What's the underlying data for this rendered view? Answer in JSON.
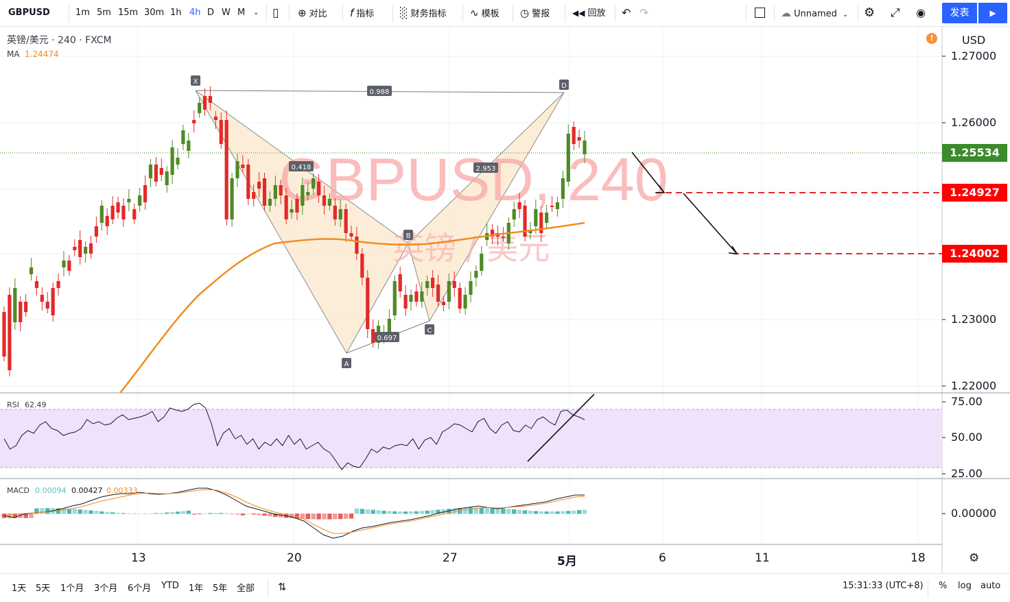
{
  "toolbar": {
    "symbol": "GBPUSD",
    "intervals": [
      "1m",
      "5m",
      "15m",
      "30m",
      "1h",
      "4h",
      "D",
      "W",
      "M"
    ],
    "active_interval": "4h",
    "compare": "对比",
    "indicators": "指标",
    "fin_indicators": "财务指标",
    "templates": "模板",
    "alert": "警报",
    "replay": "回放",
    "layout_name": "Unnamed",
    "publish": "发表"
  },
  "legend": {
    "title": "英镑/美元 · 240 · FXCM",
    "ma_label": "MA",
    "ma_value": "1.24474",
    "rsi_label": "RSI",
    "rsi_value": "62.49",
    "macd_label": "MACD",
    "macd_hist": "0.00094",
    "macd_line": "0.00427",
    "macd_signal": "0.00333"
  },
  "watermark": {
    "main": "GBPUSD, 240",
    "sub": "英镑 / 美元"
  },
  "price_axis": {
    "currency": "USD",
    "labels": [
      "1.27000",
      "1.26000",
      "1.23000",
      "1.22000"
    ],
    "current_price": "1.25534",
    "level1": "1.24927",
    "level2": "1.24002",
    "current_color": "#3b8a2b",
    "level_color": "#ff0000"
  },
  "rsi_axis": [
    "75.00",
    "50.00",
    "25.00"
  ],
  "macd_axis": [
    "0.00000"
  ],
  "time_axis": [
    "13",
    "20",
    "27",
    "5月",
    "6",
    "11",
    "18"
  ],
  "pattern": {
    "points": [
      "X",
      "A",
      "B",
      "C",
      "D"
    ],
    "ratios": [
      "0.988",
      "0.418",
      "0.697",
      "2.953"
    ]
  },
  "bottom": {
    "ranges": [
      "1天",
      "5天",
      "1个月",
      "3个月",
      "6个月",
      "YTD",
      "1年",
      "5年",
      "全部"
    ],
    "time": "15:31:33 (UTC+8)",
    "pct": "%",
    "log": "log",
    "auto": "auto"
  },
  "colors": {
    "up": "#4f8a26",
    "down": "#e22a2a",
    "ma": "#f08c20",
    "rsi_band": "#efe3fb"
  }
}
